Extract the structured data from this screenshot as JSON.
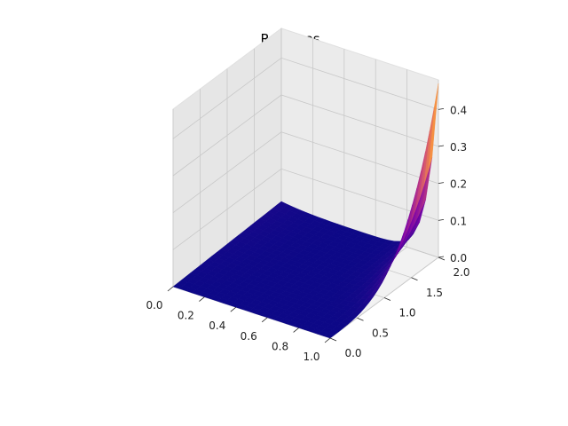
{
  "chart_data": {
    "type": "surface3d",
    "title": "Residues",
    "xlabel": "",
    "ylabel": "",
    "zlabel": "",
    "xlim": [
      0,
      1
    ],
    "ylim": [
      0,
      2
    ],
    "zlim": [
      0,
      0.48
    ],
    "x_ticks": [
      "0.0",
      "0.2",
      "0.4",
      "0.6",
      "0.8",
      "1.0"
    ],
    "y_ticks": [
      "0.0",
      "0.5",
      "1.0",
      "1.5",
      "2.0"
    ],
    "z_ticks": [
      "0.0",
      "0.1",
      "0.2",
      "0.3",
      "0.4"
    ],
    "x_tick_values": [
      0,
      0.2,
      0.4,
      0.6,
      0.8,
      1.0
    ],
    "y_tick_values": [
      0,
      0.5,
      1.0,
      1.5,
      2.0
    ],
    "z_tick_values": [
      0,
      0.1,
      0.2,
      0.3,
      0.4
    ],
    "colormap": "plasma",
    "grid": true,
    "surface": {
      "description_points": [
        {
          "x": 0.0,
          "y": 0.0,
          "z": 0.0
        },
        {
          "x": 0.0,
          "y": 2.0,
          "z": 0.02
        },
        {
          "x": 1.0,
          "y": 0.0,
          "z": 0.0
        },
        {
          "x": 1.0,
          "y": 1.0,
          "z": 0.03
        },
        {
          "x": 1.0,
          "y": 1.5,
          "z": 0.15
        },
        {
          "x": 1.0,
          "y": 2.0,
          "z": 0.47
        }
      ],
      "peak": {
        "x": 1.0,
        "y": 2.0,
        "z": 0.47
      }
    }
  }
}
